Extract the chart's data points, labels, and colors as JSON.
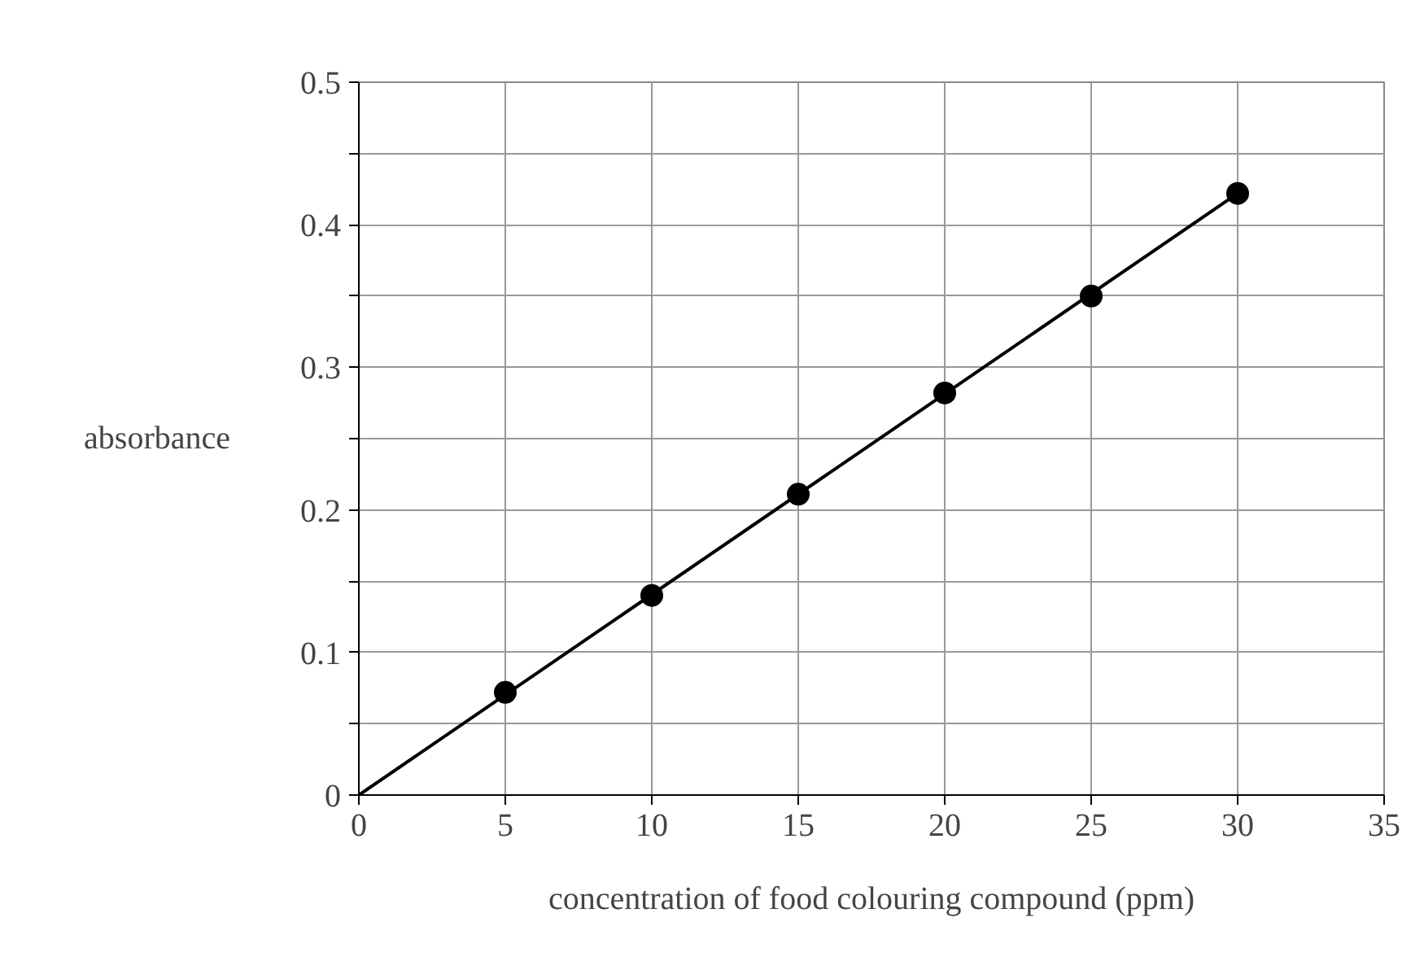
{
  "chart_data": {
    "type": "scatter",
    "xlabel": "concentration of food colouring compound (ppm)",
    "ylabel": "absorbance",
    "xlim": [
      0,
      35
    ],
    "ylim": [
      0,
      0.5
    ],
    "xticks": [
      0,
      5,
      10,
      15,
      20,
      25,
      30,
      35
    ],
    "yticks": [
      0,
      {
        "value": 0.05,
        "label": null
      },
      0.1,
      {
        "value": 0.15,
        "label": null
      },
      0.2,
      {
        "value": 0.25,
        "label": null
      },
      0.3,
      {
        "value": 0.35,
        "label": null
      },
      0.4,
      {
        "value": 0.45,
        "label": null
      },
      0.5
    ],
    "grid": true,
    "marker": "circle",
    "series": [
      {
        "color": "#000000",
        "x": [
          5,
          10,
          15,
          20,
          25,
          30
        ],
        "values": [
          0.072,
          0.14,
          0.211,
          0.282,
          0.35,
          0.422
        ]
      },
      {
        "type": "line",
        "marker": "none",
        "color": "#000000",
        "x": [
          0,
          30
        ],
        "values": [
          0,
          0.422
        ]
      }
    ]
  }
}
